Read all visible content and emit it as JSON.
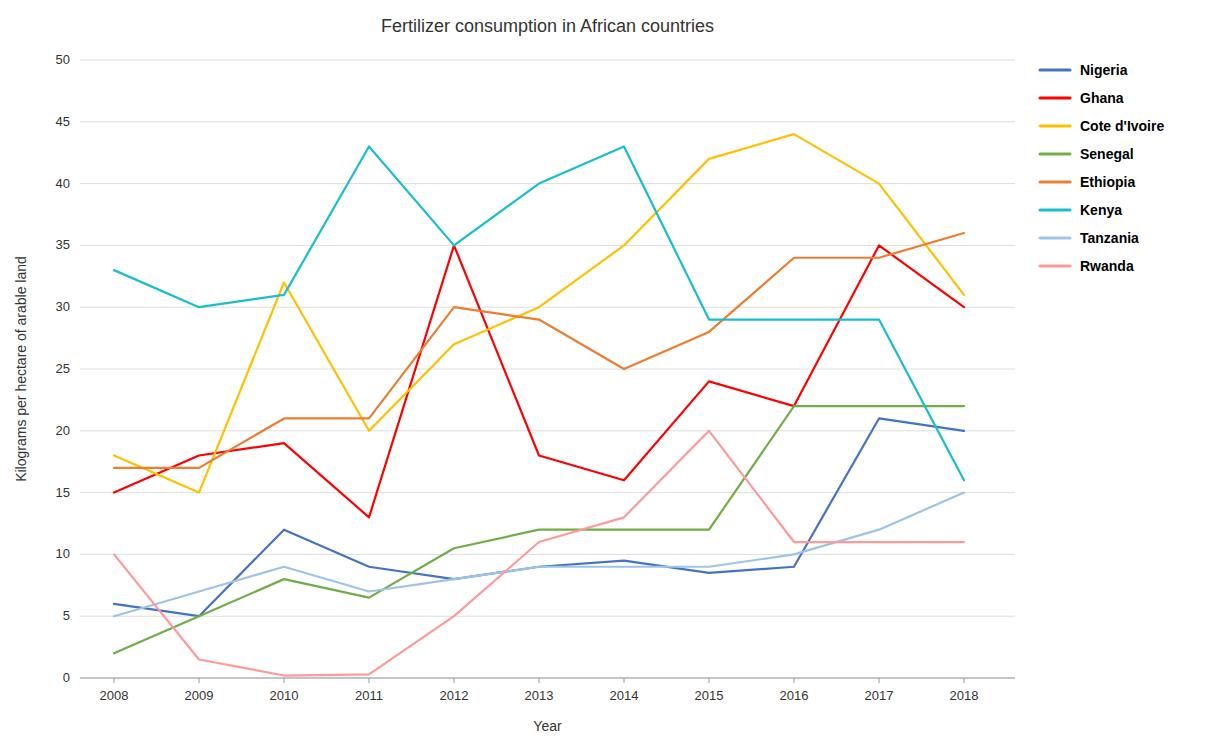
{
  "chart_data": {
    "type": "line",
    "title": "Fertilizer consumption in African countries",
    "xlabel": "Year",
    "ylabel": "Kilograms per hectare of arable land",
    "x": [
      2008,
      2009,
      2010,
      2011,
      2012,
      2013,
      2014,
      2015,
      2016,
      2017,
      2018
    ],
    "xlim": [
      2007.6,
      2018.6
    ],
    "xticks": [
      2008,
      2009,
      2010,
      2011,
      2012,
      2013,
      2014,
      2015,
      2016,
      2017,
      2018
    ],
    "ylim": [
      0,
      50
    ],
    "yticks": [
      0,
      5,
      10,
      15,
      20,
      25,
      30,
      35,
      40,
      45,
      50
    ],
    "grid": true,
    "legend": "right",
    "series": [
      {
        "name": "Nigeria",
        "color": "#4472C4",
        "values": [
          6,
          5,
          12,
          9,
          8,
          9,
          9.5,
          8.5,
          9,
          21,
          20
        ]
      },
      {
        "name": "Ghana",
        "color": "#FF0000",
        "values": [
          15,
          18,
          19,
          13,
          35,
          18,
          16,
          24,
          22,
          35,
          30
        ]
      },
      {
        "name": "Cote d'Ivoire",
        "color": "#FFC000",
        "values": [
          18,
          15,
          32,
          20,
          27,
          30,
          35,
          42,
          44,
          40,
          31
        ]
      },
      {
        "name": "Senegal",
        "color": "#70AD47",
        "values": [
          2,
          5,
          8,
          6.5,
          10.5,
          12,
          12,
          12,
          22,
          22,
          22
        ]
      },
      {
        "name": "Ethiopia",
        "color": "#ED7D31",
        "values": [
          17,
          17,
          21,
          21,
          30,
          29,
          25,
          28,
          34,
          34,
          36
        ]
      },
      {
        "name": "Kenya",
        "color": "#17BECF",
        "values": [
          33,
          30,
          31,
          43,
          35,
          40,
          43,
          29,
          29,
          29,
          16
        ]
      },
      {
        "name": "Tanzania",
        "color": "#9DC3E6",
        "values": [
          5,
          7,
          9,
          7,
          8,
          9,
          9,
          9,
          10,
          12,
          15
        ]
      },
      {
        "name": "Rwanda",
        "color": "#FF9999",
        "values": [
          10,
          1.5,
          0.2,
          0.3,
          5,
          11,
          13,
          20,
          11,
          11,
          11
        ]
      }
    ]
  }
}
